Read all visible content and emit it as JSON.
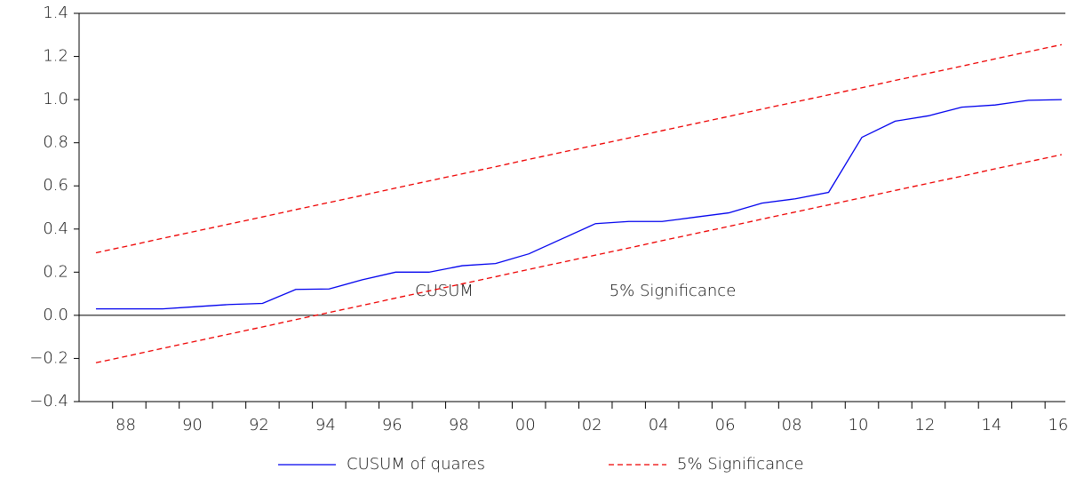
{
  "chart_data": {
    "type": "line",
    "categories": [
      null,
      "88",
      null,
      "90",
      null,
      "92",
      null,
      "94",
      null,
      "96",
      null,
      "98",
      null,
      "00",
      null,
      "02",
      null,
      "04",
      null,
      "06",
      null,
      "08",
      null,
      "10",
      null,
      "12",
      null,
      "14",
      null,
      "16"
    ],
    "series": [
      {
        "name": "CUSUM of quares",
        "color": "#0000ee",
        "dash": "solid",
        "values": [
          0.03,
          0.03,
          0.03,
          0.04,
          0.05,
          0.055,
          0.12,
          0.122,
          0.165,
          0.2,
          0.2,
          0.23,
          0.24,
          0.285,
          0.355,
          0.425,
          0.435,
          0.435,
          0.455,
          0.475,
          0.52,
          0.54,
          0.57,
          0.825,
          0.9,
          0.925,
          0.965,
          0.975,
          0.997,
          1.0
        ]
      },
      {
        "name": "5% Significance",
        "color": "#ee0000",
        "dash": "dashed",
        "values": [
          0.29,
          0.323,
          0.357,
          0.39,
          0.423,
          0.456,
          0.49,
          0.523,
          0.556,
          0.59,
          0.623,
          0.656,
          0.689,
          0.723,
          0.756,
          0.789,
          0.822,
          0.856,
          0.889,
          0.922,
          0.956,
          0.989,
          1.022,
          1.055,
          1.089,
          1.122,
          1.155,
          1.189,
          1.222,
          1.255
        ]
      },
      {
        "color": "#ee0000",
        "dash": "dashed",
        "values": [
          -0.22,
          -0.187,
          -0.153,
          -0.12,
          -0.087,
          -0.054,
          -0.02,
          0.013,
          0.046,
          0.08,
          0.113,
          0.146,
          0.179,
          0.213,
          0.246,
          0.279,
          0.312,
          0.346,
          0.379,
          0.412,
          0.446,
          0.479,
          0.512,
          0.545,
          0.579,
          0.612,
          0.645,
          0.679,
          0.712,
          0.745
        ]
      }
    ],
    "annotations": [
      "CUSUM",
      "5% Significance"
    ],
    "ylim": [
      -0.4,
      1.4
    ],
    "yticks": [
      {
        "value": -0.4,
        "label": "−0.4"
      },
      {
        "value": -0.2,
        "label": "−0.2"
      },
      {
        "value": 0,
        "label": "0.0"
      },
      0.2,
      0.4,
      0.6,
      0.8,
      {
        "value": 1,
        "label": "1.0"
      },
      1.2,
      1.4
    ],
    "zero_line": true,
    "legend": "bottom"
  }
}
